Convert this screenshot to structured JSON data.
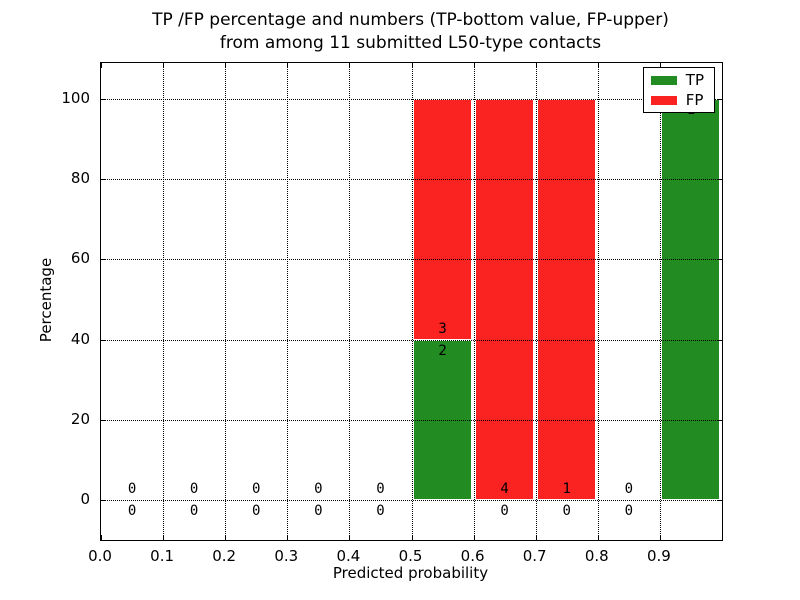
{
  "chart_data": {
    "type": "bar",
    "title": "TP /FP percentage and numbers (TP-bottom value, FP-upper) from among 11 submitted L50-type contacts",
    "title_line1": "TP /FP percentage and numbers (TP-bottom value, FP-upper)",
    "title_line2": "from among 11 submitted L50-type contacts",
    "xlabel": "Predicted probability",
    "ylabel": "Percentage",
    "xlim": [
      0.0,
      1.0
    ],
    "ylim": [
      -10,
      109
    ],
    "grid": true,
    "grid_linestyle": "dotted",
    "legend_position": "upper right",
    "legend": [
      {
        "name": "TP",
        "color": "#228b22"
      },
      {
        "name": "FP",
        "color": "#fb2222"
      }
    ],
    "xticks": [
      0.0,
      0.1,
      0.2,
      0.3,
      0.4,
      0.5,
      0.6,
      0.7,
      0.8,
      0.9
    ],
    "xtick_labels": [
      "0.0",
      "0.1",
      "0.2",
      "0.3",
      "0.4",
      "0.5",
      "0.6",
      "0.7",
      "0.8",
      "0.9"
    ],
    "yticks": [
      0,
      20,
      40,
      60,
      80,
      100
    ],
    "ytick_labels": [
      "0",
      "20",
      "40",
      "60",
      "80",
      "100"
    ],
    "total_contacts": 11,
    "bins": [
      {
        "x0": 0.0,
        "x1": 0.1,
        "tp_pct": 0,
        "fp_pct": 0,
        "tp_label": "0",
        "fp_label": "0"
      },
      {
        "x0": 0.1,
        "x1": 0.2,
        "tp_pct": 0,
        "fp_pct": 0,
        "tp_label": "0",
        "fp_label": "0"
      },
      {
        "x0": 0.2,
        "x1": 0.3,
        "tp_pct": 0,
        "fp_pct": 0,
        "tp_label": "0",
        "fp_label": "0"
      },
      {
        "x0": 0.3,
        "x1": 0.4,
        "tp_pct": 0,
        "fp_pct": 0,
        "tp_label": "0",
        "fp_label": "0"
      },
      {
        "x0": 0.4,
        "x1": 0.5,
        "tp_pct": 0,
        "fp_pct": 0,
        "tp_label": "0",
        "fp_label": "0"
      },
      {
        "x0": 0.5,
        "x1": 0.6,
        "tp_pct": 40,
        "fp_pct": 60,
        "tp_label": "2",
        "fp_label": "3"
      },
      {
        "x0": 0.6,
        "x1": 0.7,
        "tp_pct": 0,
        "fp_pct": 100,
        "tp_label": "0",
        "fp_label": "4"
      },
      {
        "x0": 0.7,
        "x1": 0.8,
        "tp_pct": 0,
        "fp_pct": 100,
        "tp_label": "0",
        "fp_label": "1"
      },
      {
        "x0": 0.8,
        "x1": 0.9,
        "tp_pct": 0,
        "fp_pct": 0,
        "tp_label": "0",
        "fp_label": "0"
      },
      {
        "x0": 0.9,
        "x1": 1.0,
        "tp_pct": 100,
        "fp_pct": 0,
        "tp_label": "1",
        "fp_label": null
      }
    ],
    "colors": {
      "tp": "#228b22",
      "fp": "#fb2222",
      "axes": "#000000",
      "background": "#ffffff"
    }
  }
}
